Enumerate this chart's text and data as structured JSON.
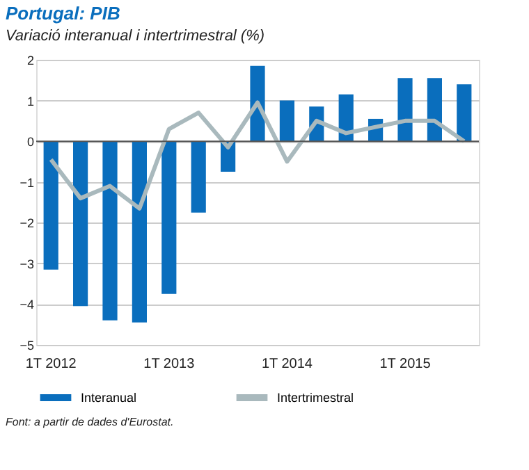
{
  "chart_data": {
    "type": "bar",
    "title": "Portugal: PIB",
    "subtitle": "Variació interanual i intertrimestral (%)",
    "categories": [
      "1T 2012",
      null,
      null,
      null,
      "1T 2013",
      null,
      null,
      null,
      "1T 2014",
      null,
      null,
      null,
      "1T 2015",
      null,
      null
    ],
    "series": [
      {
        "name": "Interanual",
        "color": "#0a6ebd",
        "values": [
          -3.15,
          -4.05,
          -4.4,
          -4.45,
          -3.75,
          -1.75,
          -0.75,
          1.85,
          1.0,
          0.85,
          1.15,
          0.55,
          1.55,
          1.55,
          1.4
        ]
      },
      {
        "name": "Intertrimestral",
        "type": "line",
        "color": "#a9b9bd",
        "values": [
          -0.45,
          -1.4,
          -1.1,
          -1.65,
          0.3,
          0.7,
          -0.15,
          0.95,
          -0.5,
          0.5,
          0.2,
          0.35,
          0.5,
          0.5,
          0.0
        ]
      }
    ],
    "ylim": [
      -5,
      2
    ],
    "yticks": [
      -5,
      -4,
      -3,
      -2,
      -1,
      0,
      1,
      2
    ],
    "grid": "y",
    "legend": "bottom",
    "marker": "none",
    "line_style": "solid",
    "annotations": [
      "Font: a partir de dades d'Eurostat."
    ]
  }
}
